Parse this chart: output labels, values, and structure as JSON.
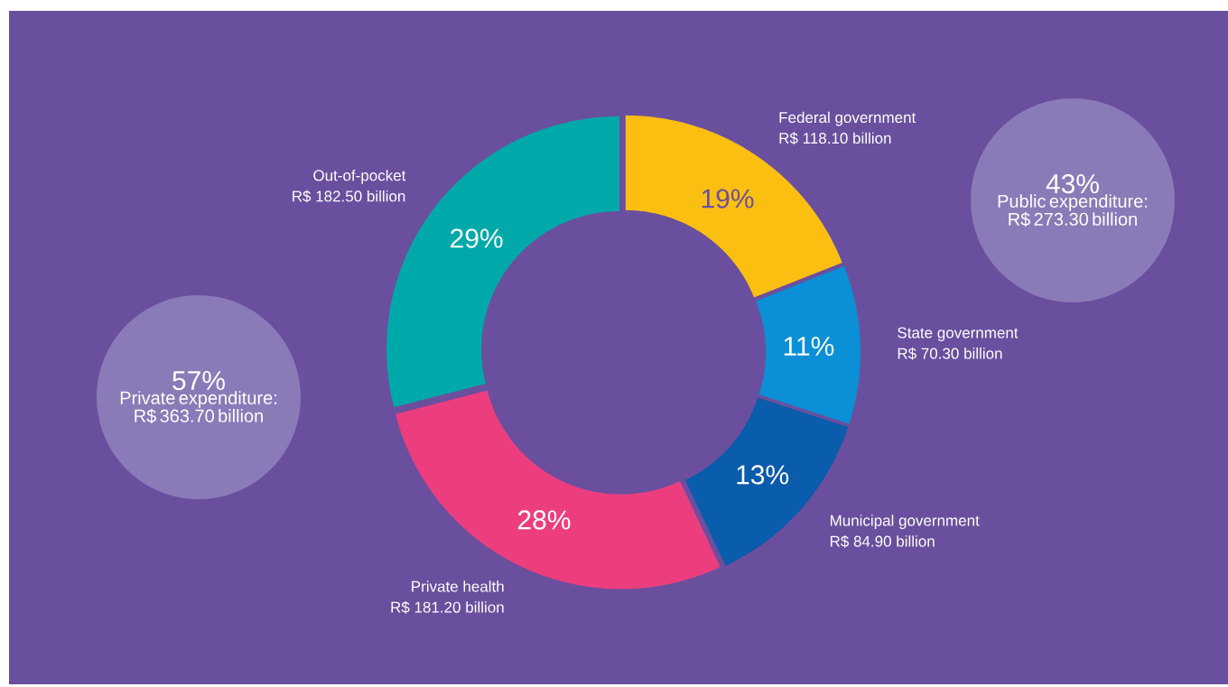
{
  "chart_data": {
    "type": "donut",
    "categories": [
      "Federal government",
      "State government",
      "Municipal government",
      "Private health",
      "Out-of-pocket"
    ],
    "values": [
      19,
      11,
      13,
      28,
      29
    ],
    "value_labels": [
      "19%",
      "11%",
      "13%",
      "28%",
      "29%"
    ],
    "colors": [
      "#fbbf12",
      "#0b8fd6",
      "#0a5cac",
      "#ec3e7e",
      "#00a9a9"
    ],
    "annotations": [
      {
        "text": "R$ 118.10 billion",
        "x": "Federal government"
      },
      {
        "text": "R$ 70.30 billion",
        "x": "State government"
      },
      {
        "text": "R$ 84.90 billion",
        "x": "Municipal government"
      },
      {
        "text": "R$ 181.20 billion",
        "x": "Private health"
      },
      {
        "text": "R$ 182.50 billion",
        "x": "Out-of-pocket"
      },
      "43%",
      "Public expenditure: R$ 273.30 billion",
      "57%",
      "Private expenditure: R$ 363.70 billion"
    ]
  }
}
